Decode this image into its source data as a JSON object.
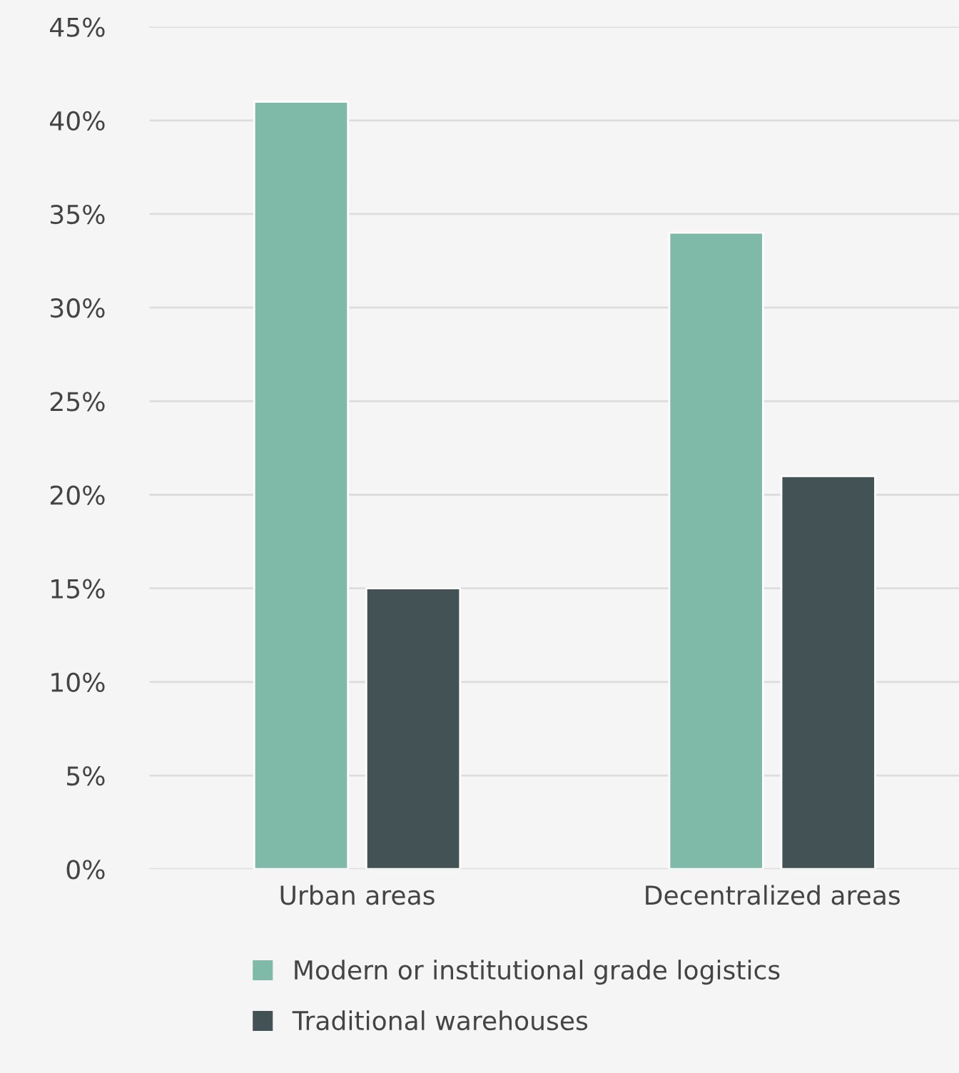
{
  "chart_data": {
    "type": "bar",
    "categories": [
      "Urban areas",
      "Decentralized areas"
    ],
    "series": [
      {
        "name": "Modern or institutional grade logistics",
        "color": "#7fbaa9",
        "values": [
          41,
          34
        ]
      },
      {
        "name": "Traditional warehouses",
        "color": "#435255",
        "values": [
          15,
          21
        ]
      }
    ],
    "ylim": [
      0,
      45
    ],
    "yticks": [
      {
        "value": 0,
        "label": "0%"
      },
      {
        "value": 5,
        "label": "5%"
      },
      {
        "value": 10,
        "label": "10%"
      },
      {
        "value": 15,
        "label": "15%"
      },
      {
        "value": 20,
        "label": "20%"
      },
      {
        "value": 25,
        "label": "25%"
      },
      {
        "value": 30,
        "label": "30%"
      },
      {
        "value": 35,
        "label": "35%"
      },
      {
        "value": 40,
        "label": "40%"
      },
      {
        "value": 45,
        "label": "45%"
      }
    ],
    "grid": "y",
    "legend": "bottom"
  }
}
